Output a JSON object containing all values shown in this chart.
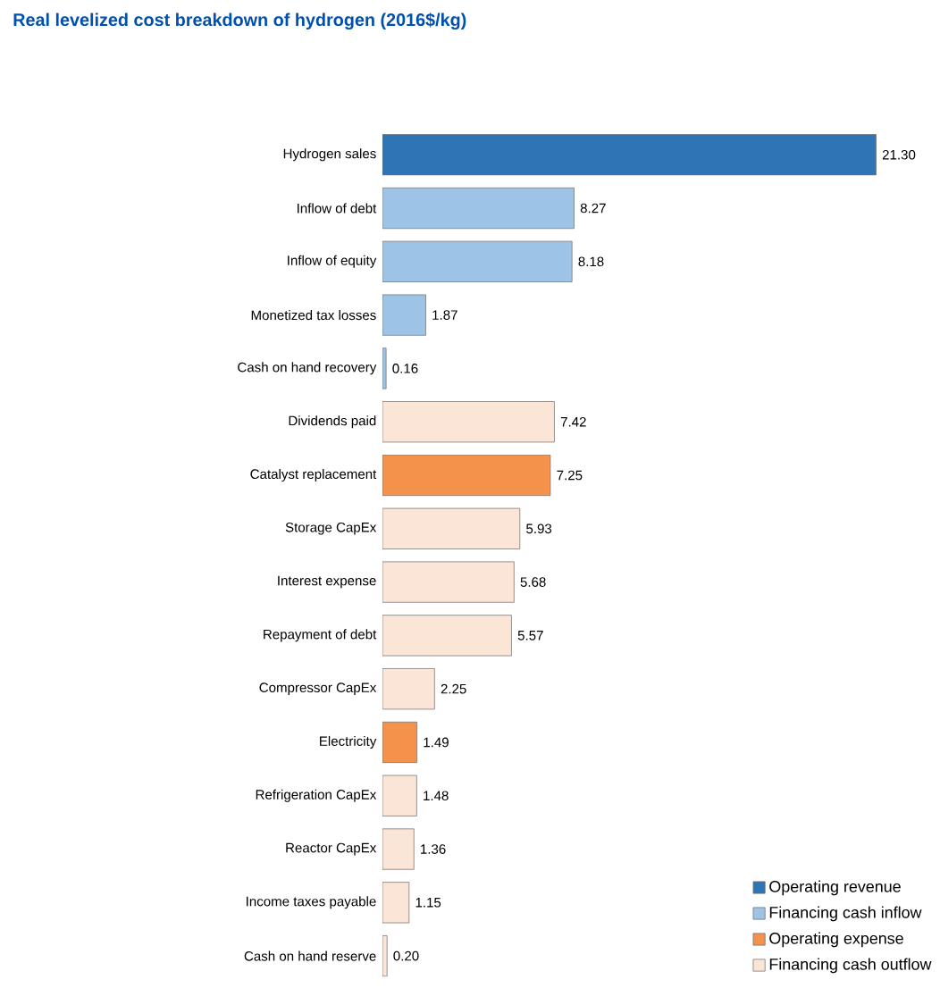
{
  "chart_data": {
    "type": "bar",
    "orientation": "horizontal",
    "title": "Real levelized cost breakdown of hydrogen (2016$/kg)",
    "legend": "bottom right",
    "categories": [
      "Hydrogen sales",
      "Inflow of debt",
      "Inflow of equity",
      "Monetized tax losses",
      "Cash on hand recovery",
      "Dividends paid",
      "Catalyst replacement",
      "Storage CapEx",
      "Interest expense",
      "Repayment of debt",
      "Compressor CapEx",
      "Electricity",
      "Refrigeration CapEx",
      "Reactor CapEx",
      "Income taxes payable",
      "Cash on hand reserve"
    ],
    "series": [
      {
        "name": "Operating revenue",
        "color": "#2e75b6",
        "values": [
          21.3,
          null,
          null,
          null,
          null,
          null,
          null,
          null,
          null,
          null,
          null,
          null,
          null,
          null,
          null,
          null
        ],
        "value_labels": [
          "21.30",
          null,
          null,
          null,
          null,
          null,
          null,
          null,
          null,
          null,
          null,
          null,
          null,
          null,
          null,
          null
        ]
      },
      {
        "name": "Financing cash inflow",
        "color": "#9dc3e6",
        "values": [
          null,
          8.27,
          8.18,
          1.87,
          0.16,
          null,
          null,
          null,
          null,
          null,
          null,
          null,
          null,
          null,
          null,
          null
        ],
        "value_labels": [
          null,
          "8.27",
          "8.18",
          "1.87",
          "0.16",
          null,
          null,
          null,
          null,
          null,
          null,
          null,
          null,
          null,
          null,
          null
        ]
      },
      {
        "name": "Operating expense",
        "color": "#f4914a",
        "values": [
          null,
          null,
          null,
          null,
          null,
          null,
          7.25,
          null,
          null,
          null,
          null,
          1.49,
          null,
          null,
          null,
          null
        ],
        "value_labels": [
          null,
          null,
          null,
          null,
          null,
          null,
          "7.25",
          null,
          null,
          null,
          null,
          "1.49",
          null,
          null,
          null,
          null
        ]
      },
      {
        "name": "Financing cash outflow",
        "color": "#fbe5d6",
        "values": [
          null,
          null,
          null,
          null,
          null,
          7.42,
          null,
          5.93,
          5.68,
          5.57,
          2.25,
          null,
          1.48,
          1.36,
          1.15,
          0.2
        ],
        "value_labels": [
          null,
          null,
          null,
          null,
          null,
          "7.42",
          null,
          "5.93",
          "5.68",
          "5.57",
          "2.25",
          null,
          "1.48",
          "1.36",
          "1.15",
          "0.20"
        ]
      }
    ]
  }
}
